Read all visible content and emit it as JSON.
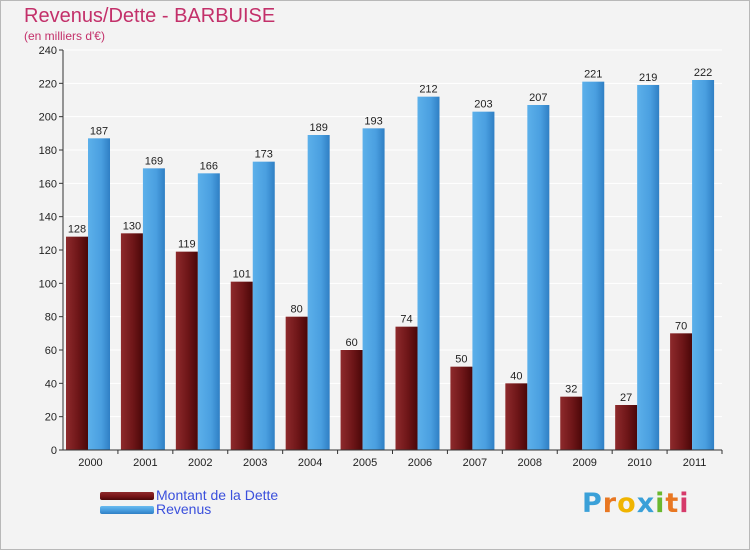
{
  "title": "Revenus/Dette - BARBUISE",
  "subtitle": "(en milliers d'€)",
  "colors": {
    "title": "#c3306a",
    "dette": "#7a1518",
    "revenus": "#4a9fe0",
    "grid": "#ffffff",
    "background": "#f3f3f3",
    "legend_text": "#3a4fdc"
  },
  "legend": {
    "dette_label": "Montant de la Dette",
    "revenus_label": "Revenus"
  },
  "logo": {
    "letters": [
      "P",
      "r",
      "o",
      "x",
      "i",
      "t",
      "i"
    ],
    "colors": [
      "#3aa0d8",
      "#e87722",
      "#f0b400",
      "#3aa0d8",
      "#6ab82e",
      "#e87722",
      "#d63a6a"
    ]
  },
  "chart_data": {
    "type": "bar",
    "categories": [
      "2000",
      "2001",
      "2002",
      "2003",
      "2004",
      "2005",
      "2006",
      "2007",
      "2008",
      "2009",
      "2010",
      "2011"
    ],
    "series": [
      {
        "name": "Montant de la Dette",
        "values": [
          128,
          130,
          119,
          101,
          80,
          60,
          74,
          50,
          40,
          32,
          27,
          70
        ]
      },
      {
        "name": "Revenus",
        "values": [
          187,
          169,
          166,
          173,
          189,
          193,
          212,
          203,
          207,
          221,
          219,
          222
        ]
      }
    ],
    "ylim": [
      0,
      240
    ],
    "yticks": [
      0,
      20,
      40,
      60,
      80,
      100,
      120,
      140,
      160,
      180,
      200,
      220,
      240
    ],
    "grid": true,
    "legend_position": "bottom-left"
  }
}
